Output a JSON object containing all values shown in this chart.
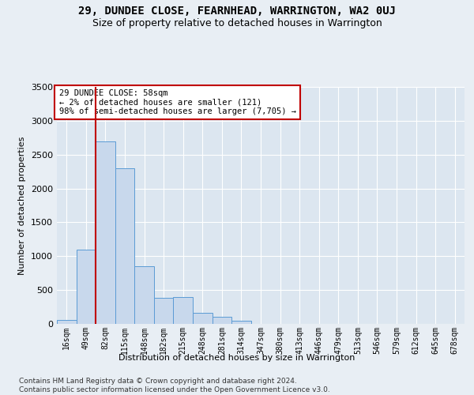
{
  "title": "29, DUNDEE CLOSE, FEARNHEAD, WARRINGTON, WA2 0UJ",
  "subtitle": "Size of property relative to detached houses in Warrington",
  "xlabel": "Distribution of detached houses by size in Warrington",
  "ylabel": "Number of detached properties",
  "categories": [
    "16sqm",
    "49sqm",
    "82sqm",
    "115sqm",
    "148sqm",
    "182sqm",
    "215sqm",
    "248sqm",
    "281sqm",
    "314sqm",
    "347sqm",
    "380sqm",
    "413sqm",
    "446sqm",
    "479sqm",
    "513sqm",
    "546sqm",
    "579sqm",
    "612sqm",
    "645sqm",
    "678sqm"
  ],
  "values": [
    60,
    1100,
    2700,
    2300,
    850,
    380,
    400,
    165,
    100,
    50,
    0,
    0,
    0,
    0,
    0,
    0,
    0,
    0,
    0,
    0,
    0
  ],
  "bar_color": "#c8d8ec",
  "bar_edge_color": "#5b9bd5",
  "vline_color": "#c00000",
  "vline_x": 1.5,
  "annotation_text": "29 DUNDEE CLOSE: 58sqm\n← 2% of detached houses are smaller (121)\n98% of semi-detached houses are larger (7,705) →",
  "annotation_box_color": "#ffffff",
  "annotation_box_edge": "#c00000",
  "ylim": [
    0,
    3500
  ],
  "yticks": [
    0,
    500,
    1000,
    1500,
    2000,
    2500,
    3000,
    3500
  ],
  "bg_color": "#e8eef4",
  "plot_bg_color": "#dce6f0",
  "footer": "Contains HM Land Registry data © Crown copyright and database right 2024.\nContains public sector information licensed under the Open Government Licence v3.0.",
  "title_fontsize": 10,
  "subtitle_fontsize": 9,
  "tick_fontsize": 7,
  "ylabel_fontsize": 8,
  "footer_fontsize": 6.5
}
